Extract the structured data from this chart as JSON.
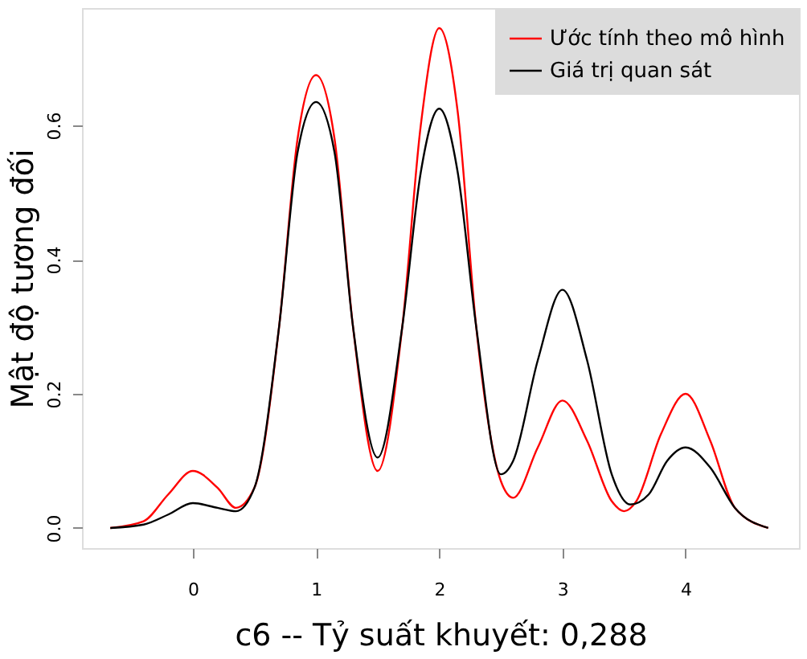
{
  "chart_data": {
    "type": "line",
    "xlabel": "c6   --  Tỷ suất khuyết: 0,288",
    "ylabel": "Mật độ tương đối",
    "x": [
      -0.67,
      -0.4,
      -0.2,
      0,
      0.2,
      0.35,
      0.5,
      0.7,
      0.85,
      1,
      1.15,
      1.3,
      1.5,
      1.7,
      1.85,
      2,
      2.15,
      2.3,
      2.5,
      2.6,
      2.8,
      3,
      3.2,
      3.4,
      3.5,
      3.6,
      3.8,
      4,
      4.2,
      4.4,
      4.67
    ],
    "series": [
      {
        "name": "Ước tính theo mô hình",
        "color": "#ff0000",
        "values": [
          0,
          0.01,
          0.05,
          0.085,
          0.06,
          0.03,
          0.06,
          0.3,
          0.58,
          0.675,
          0.58,
          0.3,
          0.085,
          0.3,
          0.6,
          0.745,
          0.62,
          0.3,
          0.07,
          0.045,
          0.12,
          0.19,
          0.13,
          0.04,
          0.025,
          0.04,
          0.14,
          0.2,
          0.13,
          0.03,
          0
        ]
      },
      {
        "name": "Giá trị quan sát",
        "color": "#000000",
        "x": [
          -0.67,
          -0.4,
          -0.2,
          0,
          0.2,
          0.35,
          0.5,
          0.7,
          0.85,
          1,
          1.15,
          1.3,
          1.5,
          1.7,
          1.85,
          2,
          2.15,
          2.3,
          2.5,
          2.6,
          2.8,
          3,
          3.2,
          3.4,
          3.55,
          3.7,
          3.85,
          4,
          4.2,
          4.4,
          4.67
        ],
        "values": [
          0,
          0.005,
          0.02,
          0.037,
          0.03,
          0.025,
          0.06,
          0.3,
          0.56,
          0.635,
          0.56,
          0.3,
          0.105,
          0.3,
          0.53,
          0.625,
          0.53,
          0.3,
          0.08,
          0.1,
          0.25,
          0.355,
          0.25,
          0.08,
          0.035,
          0.05,
          0.1,
          0.12,
          0.09,
          0.03,
          0
        ]
      }
    ],
    "xlim": [
      -0.9,
      4.92
    ],
    "xticks": [
      0,
      1,
      2,
      3,
      4
    ],
    "ylim": [
      -0.03,
      0.775
    ],
    "yticks": [
      {
        "value": 0,
        "label": "0.0"
      },
      0.2,
      0.4,
      0.6
    ],
    "legend": "top right",
    "grid": false,
    "line_style": "solid",
    "marker": "none"
  }
}
